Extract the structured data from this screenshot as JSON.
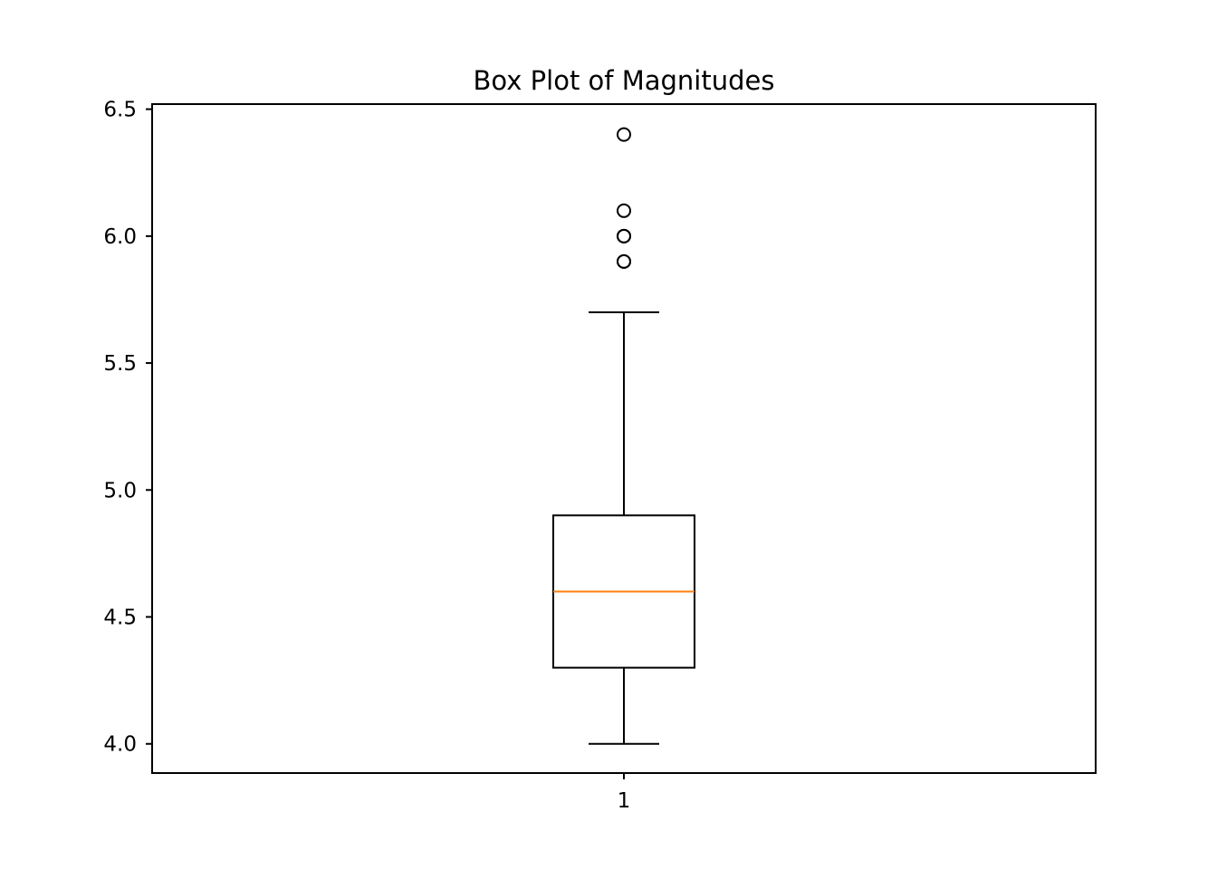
{
  "chart_data": {
    "type": "box",
    "title": "Box Plot of Magnitudes",
    "xlabel": "",
    "ylabel": "",
    "categories": [
      "1"
    ],
    "ylim": [
      3.885,
      6.52
    ],
    "yticks": [
      {
        "value": 4.0,
        "label": "4.0"
      },
      {
        "value": 4.5,
        "label": "4.5"
      },
      {
        "value": 5.0,
        "label": "5.0"
      },
      {
        "value": 5.5,
        "label": "5.5"
      },
      {
        "value": 6.0,
        "label": "6.0"
      },
      {
        "value": 6.5,
        "label": "6.5"
      }
    ],
    "grid": false,
    "legend": "none",
    "boxes": [
      {
        "category": "1",
        "whisker_low": 4.0,
        "q1": 4.3,
        "median": 4.6,
        "q3": 4.9,
        "whisker_high": 5.7,
        "outliers": [
          5.9,
          5.9,
          6.0,
          6.0,
          6.1,
          6.4
        ]
      }
    ],
    "colors": {
      "box": "#000000",
      "median": "#ff7f0e",
      "outlier_edge": "#000000"
    }
  }
}
